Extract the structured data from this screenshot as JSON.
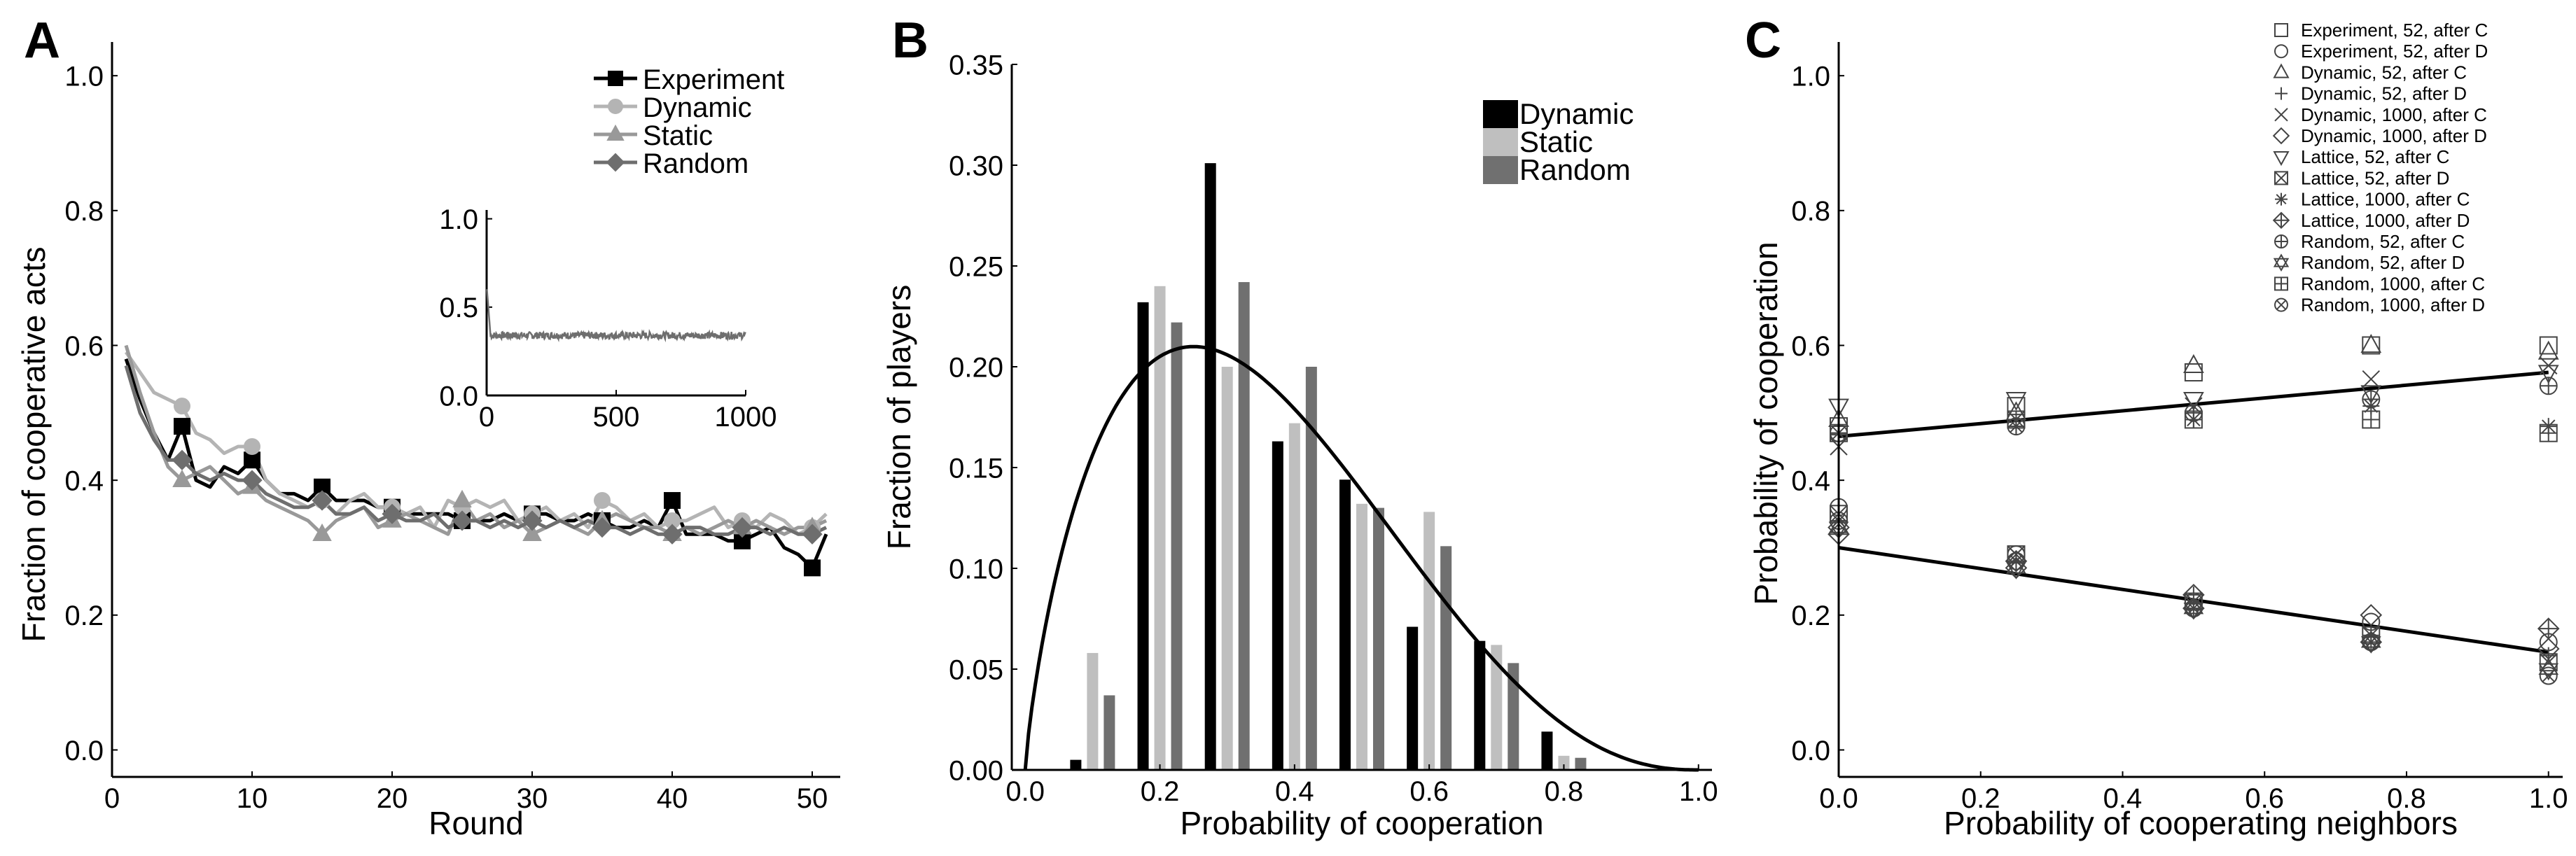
{
  "chart_data": [
    {
      "id": "A",
      "panel_label": "A",
      "type": "line",
      "xlabel": "Round",
      "ylabel": "Fraction of cooperative acts",
      "xlim": [
        0,
        52
      ],
      "ylim": [
        -0.04,
        1.05
      ],
      "xticks": [
        0,
        10,
        20,
        30,
        40,
        50
      ],
      "xtick_labels": [
        "0",
        "10",
        "20",
        "30",
        "40",
        "50"
      ],
      "yticks": [
        0.0,
        0.2,
        0.4,
        0.6,
        0.8,
        1.0
      ],
      "ytick_labels": [
        "0.0",
        "0.2",
        "0.4",
        "0.6",
        "0.8",
        "1.0"
      ],
      "legend_position": "top-right",
      "series": [
        {
          "name": "Experiment",
          "color": "#000000",
          "marker": "square",
          "x": [
            1,
            2,
            3,
            4,
            5,
            6,
            7,
            8,
            9,
            10,
            11,
            12,
            13,
            14,
            15,
            16,
            17,
            18,
            19,
            20,
            21,
            22,
            23,
            24,
            25,
            26,
            27,
            28,
            29,
            30,
            31,
            32,
            33,
            34,
            35,
            36,
            37,
            38,
            39,
            40,
            41,
            42,
            43,
            44,
            45,
            46,
            47,
            48,
            49,
            50,
            51
          ],
          "y": [
            0.58,
            0.52,
            0.47,
            0.43,
            0.48,
            0.4,
            0.39,
            0.42,
            0.41,
            0.43,
            0.4,
            0.38,
            0.38,
            0.37,
            0.39,
            0.37,
            0.37,
            0.37,
            0.36,
            0.36,
            0.35,
            0.35,
            0.35,
            0.35,
            0.34,
            0.34,
            0.34,
            0.35,
            0.34,
            0.35,
            0.35,
            0.34,
            0.34,
            0.35,
            0.34,
            0.33,
            0.33,
            0.34,
            0.33,
            0.37,
            0.32,
            0.32,
            0.32,
            0.31,
            0.31,
            0.32,
            0.33,
            0.3,
            0.29,
            0.27,
            0.32
          ]
        },
        {
          "name": "Dynamic",
          "color": "#b4b4b4",
          "marker": "circle",
          "x": [
            1,
            2,
            3,
            4,
            5,
            6,
            7,
            8,
            9,
            10,
            11,
            12,
            13,
            14,
            15,
            16,
            17,
            18,
            19,
            20,
            21,
            22,
            23,
            24,
            25,
            26,
            27,
            28,
            29,
            30,
            31,
            32,
            33,
            34,
            35,
            36,
            37,
            38,
            39,
            40,
            41,
            42,
            43,
            44,
            45,
            46,
            47,
            48,
            49,
            50,
            51
          ],
          "y": [
            0.59,
            0.56,
            0.53,
            0.52,
            0.51,
            0.47,
            0.46,
            0.44,
            0.45,
            0.45,
            0.4,
            0.38,
            0.37,
            0.36,
            0.37,
            0.35,
            0.37,
            0.38,
            0.36,
            0.36,
            0.35,
            0.36,
            0.33,
            0.37,
            0.36,
            0.37,
            0.36,
            0.37,
            0.34,
            0.35,
            0.36,
            0.34,
            0.35,
            0.33,
            0.37,
            0.36,
            0.34,
            0.35,
            0.33,
            0.34,
            0.34,
            0.35,
            0.36,
            0.33,
            0.34,
            0.33,
            0.35,
            0.34,
            0.32,
            0.33,
            0.35
          ]
        },
        {
          "name": "Static",
          "color": "#999999",
          "marker": "triangle",
          "x": [
            1,
            2,
            3,
            4,
            5,
            6,
            7,
            8,
            9,
            10,
            11,
            12,
            13,
            14,
            15,
            16,
            17,
            18,
            19,
            20,
            21,
            22,
            23,
            24,
            25,
            26,
            27,
            28,
            29,
            30,
            31,
            32,
            33,
            34,
            35,
            36,
            37,
            38,
            39,
            40,
            41,
            42,
            43,
            44,
            45,
            46,
            47,
            48,
            49,
            50,
            51
          ],
          "y": [
            0.6,
            0.53,
            0.47,
            0.42,
            0.4,
            0.41,
            0.42,
            0.4,
            0.38,
            0.39,
            0.37,
            0.36,
            0.35,
            0.34,
            0.32,
            0.34,
            0.35,
            0.36,
            0.33,
            0.34,
            0.35,
            0.34,
            0.33,
            0.32,
            0.37,
            0.34,
            0.35,
            0.33,
            0.34,
            0.32,
            0.33,
            0.34,
            0.33,
            0.32,
            0.34,
            0.35,
            0.34,
            0.33,
            0.33,
            0.32,
            0.33,
            0.32,
            0.33,
            0.34,
            0.33,
            0.34,
            0.33,
            0.32,
            0.33,
            0.33,
            0.34
          ]
        },
        {
          "name": "Random",
          "color": "#6e6e6e",
          "marker": "diamond",
          "x": [
            1,
            2,
            3,
            4,
            5,
            6,
            7,
            8,
            9,
            10,
            11,
            12,
            13,
            14,
            15,
            16,
            17,
            18,
            19,
            20,
            21,
            22,
            23,
            24,
            25,
            26,
            27,
            28,
            29,
            30,
            31,
            32,
            33,
            34,
            35,
            36,
            37,
            38,
            39,
            40,
            41,
            42,
            43,
            44,
            45,
            46,
            47,
            48,
            49,
            50,
            51
          ],
          "y": [
            0.57,
            0.5,
            0.46,
            0.43,
            0.43,
            0.41,
            0.4,
            0.41,
            0.4,
            0.4,
            0.38,
            0.37,
            0.36,
            0.36,
            0.37,
            0.35,
            0.35,
            0.36,
            0.34,
            0.35,
            0.34,
            0.34,
            0.35,
            0.33,
            0.34,
            0.34,
            0.33,
            0.34,
            0.33,
            0.34,
            0.33,
            0.34,
            0.33,
            0.34,
            0.33,
            0.33,
            0.32,
            0.33,
            0.32,
            0.32,
            0.33,
            0.33,
            0.32,
            0.32,
            0.33,
            0.33,
            0.32,
            0.33,
            0.32,
            0.32,
            0.33
          ]
        }
      ],
      "inset": {
        "type": "line",
        "xlim": [
          0,
          1000
        ],
        "ylim": [
          0.0,
          1.05
        ],
        "xticks": [
          0,
          500,
          1000
        ],
        "xtick_labels": [
          "0",
          "500",
          "1000"
        ],
        "yticks": [
          0.0,
          0.5,
          1.0
        ],
        "ytick_labels": [
          "0.0",
          "0.5",
          "1.0"
        ],
        "series": {
          "name": "Random",
          "color": "#6e6e6e",
          "initial": 0.62,
          "settles_to": 0.34,
          "settle_round": 15,
          "noise": 0.02
        }
      }
    },
    {
      "id": "B",
      "panel_label": "B",
      "type": "bar",
      "xlabel": "Probability of cooperation",
      "ylabel": "Fraction of players",
      "xlim": [
        -0.02,
        1.02
      ],
      "ylim": [
        0.0,
        0.35
      ],
      "xticks": [
        0.0,
        0.2,
        0.4,
        0.6,
        0.8,
        1.0
      ],
      "xtick_labels": [
        "0.0",
        "0.2",
        "0.4",
        "0.6",
        "0.8",
        "1.0"
      ],
      "yticks": [
        0.0,
        0.05,
        0.1,
        0.15,
        0.2,
        0.25,
        0.3,
        0.35
      ],
      "ytick_labels": [
        "0.00",
        "0.05",
        "0.10",
        "0.15",
        "0.20",
        "0.25",
        "0.30",
        "0.35"
      ],
      "legend_position": "top-right",
      "categories": [
        0.1,
        0.2,
        0.3,
        0.4,
        0.5,
        0.6,
        0.7,
        0.8
      ],
      "series": [
        {
          "name": "Dynamic",
          "color": "#000000",
          "values": [
            0.005,
            0.232,
            0.301,
            0.163,
            0.144,
            0.071,
            0.064,
            0.019
          ]
        },
        {
          "name": "Static",
          "color": "#bfbfbf",
          "values": [
            0.058,
            0.24,
            0.2,
            0.172,
            0.132,
            0.128,
            0.062,
            0.007
          ]
        },
        {
          "name": "Random",
          "color": "#707070",
          "values": [
            0.037,
            0.222,
            0.242,
            0.2,
            0.13,
            0.111,
            0.053,
            0.006
          ]
        }
      ],
      "fit_curve": {
        "name": "fit",
        "color": "#000000",
        "type": "beta-like",
        "peak_x": 0.25,
        "peak_y": 0.21,
        "a": 1.8,
        "b": 3.4
      }
    },
    {
      "id": "C",
      "panel_label": "C",
      "type": "scatter",
      "xlabel": "Probability of cooperating neighbors",
      "ylabel": "Probability of cooperation",
      "xlim": [
        0.0,
        1.02
      ],
      "ylim": [
        -0.04,
        1.05
      ],
      "xticks": [
        0.0,
        0.2,
        0.4,
        0.6,
        0.8,
        1.0
      ],
      "xtick_labels": [
        "0.0",
        "0.2",
        "0.4",
        "0.6",
        "0.8",
        "1.0"
      ],
      "yticks": [
        0.0,
        0.2,
        0.4,
        0.6,
        0.8,
        1.0
      ],
      "ytick_labels": [
        "0.0",
        "0.2",
        "0.4",
        "0.6",
        "0.8",
        "1.0"
      ],
      "legend_position": "top-right",
      "x": [
        0.0,
        0.25,
        0.5,
        0.75,
        1.0
      ],
      "series": [
        {
          "name": "Experiment, 52, after C",
          "marker": "square",
          "y": [
            0.48,
            0.51,
            0.56,
            0.6,
            0.6
          ]
        },
        {
          "name": "Experiment, 52, after D",
          "marker": "circle",
          "y": [
            0.36,
            0.29,
            0.22,
            0.19,
            0.16
          ]
        },
        {
          "name": "Dynamic, 52, after C",
          "marker": "triangle-up",
          "y": [
            0.49,
            0.5,
            0.57,
            0.6,
            0.59
          ]
        },
        {
          "name": "Dynamic, 52, after D",
          "marker": "plus",
          "y": [
            0.34,
            0.28,
            0.23,
            0.17,
            0.14
          ]
        },
        {
          "name": "Dynamic, 1000, after C",
          "marker": "x",
          "y": [
            0.45,
            0.49,
            0.51,
            0.55,
            0.57
          ]
        },
        {
          "name": "Dynamic, 1000, after D",
          "marker": "diamond",
          "y": [
            0.33,
            0.27,
            0.23,
            0.2,
            0.15
          ]
        },
        {
          "name": "Lattice, 52, after C",
          "marker": "triangle-down",
          "y": [
            0.51,
            0.52,
            0.52,
            0.53,
            0.56
          ]
        },
        {
          "name": "Lattice, 52, after D",
          "marker": "square-x",
          "y": [
            0.35,
            0.29,
            0.22,
            0.17,
            0.13
          ]
        },
        {
          "name": "Lattice, 1000, after C",
          "marker": "asterisk",
          "y": [
            0.47,
            0.48,
            0.49,
            0.51,
            0.48
          ]
        },
        {
          "name": "Lattice, 1000, after D",
          "marker": "diamond-plus",
          "y": [
            0.32,
            0.28,
            0.21,
            0.16,
            0.18
          ]
        },
        {
          "name": "Random, 52, after C",
          "marker": "circle-plus",
          "y": [
            0.47,
            0.48,
            0.5,
            0.52,
            0.54
          ]
        },
        {
          "name": "Random, 52, after D",
          "marker": "star-of-david",
          "y": [
            0.33,
            0.27,
            0.21,
            0.16,
            0.12
          ]
        },
        {
          "name": "Random, 1000, after C",
          "marker": "square-plus",
          "y": [
            0.47,
            0.49,
            0.49,
            0.49,
            0.47
          ]
        },
        {
          "name": "Random, 1000, after D",
          "marker": "circle-x",
          "y": [
            0.34,
            0.28,
            0.21,
            0.16,
            0.11
          ]
        }
      ],
      "fit_lines": [
        {
          "name": "after C fit",
          "color": "#000000",
          "x": [
            0.0,
            1.0
          ],
          "y": [
            0.465,
            0.56
          ]
        },
        {
          "name": "after D fit",
          "color": "#000000",
          "x": [
            0.0,
            1.0
          ],
          "y": [
            0.3,
            0.145
          ]
        }
      ]
    }
  ]
}
